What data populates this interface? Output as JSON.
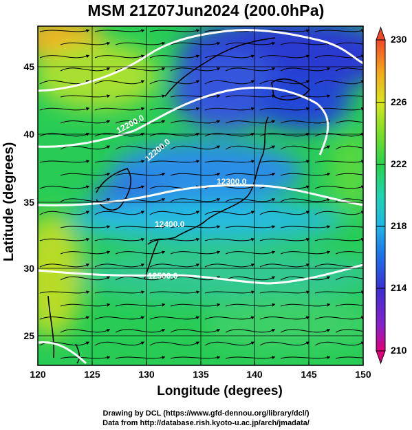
{
  "title": "MSM 21Z07Jun2024 (200.0hPa)",
  "x_axis": {
    "label": "Longitude (degrees)",
    "ticks": [
      "120",
      "125",
      "130",
      "135",
      "140",
      "145",
      "150"
    ]
  },
  "y_axis": {
    "label": "Latitude  (degrees)",
    "ticks": [
      "45",
      "40",
      "35",
      "30",
      "25"
    ]
  },
  "colorbar": {
    "ticks": [
      "230",
      "226",
      "222",
      "218",
      "214",
      "210"
    ],
    "min": 210,
    "max": 230,
    "colors": [
      "#e0007a",
      "#8a20c8",
      "#3a2fd0",
      "#1e6ee6",
      "#20b4e6",
      "#22d2b0",
      "#28d24a",
      "#7ade2a",
      "#d8e420",
      "#f4a41e",
      "#f04828"
    ]
  },
  "contour_labels": [
    "12200.0",
    "12300.0",
    "12400.0",
    "12500.0"
  ],
  "credits": {
    "line1": "Drawing by DCL (https://www.gfd-dennou.org/library/dcl/)",
    "line2": "Data from http://database.rish.kyoto-u.ac.jp/arch/jmadata/"
  },
  "map_data": {
    "variable": "temperature (K) with wind streamlines and geopotential height contours",
    "lon_range": [
      120,
      150
    ],
    "lat_range": [
      22.4,
      47.6
    ],
    "contour_interval_m": 100
  }
}
